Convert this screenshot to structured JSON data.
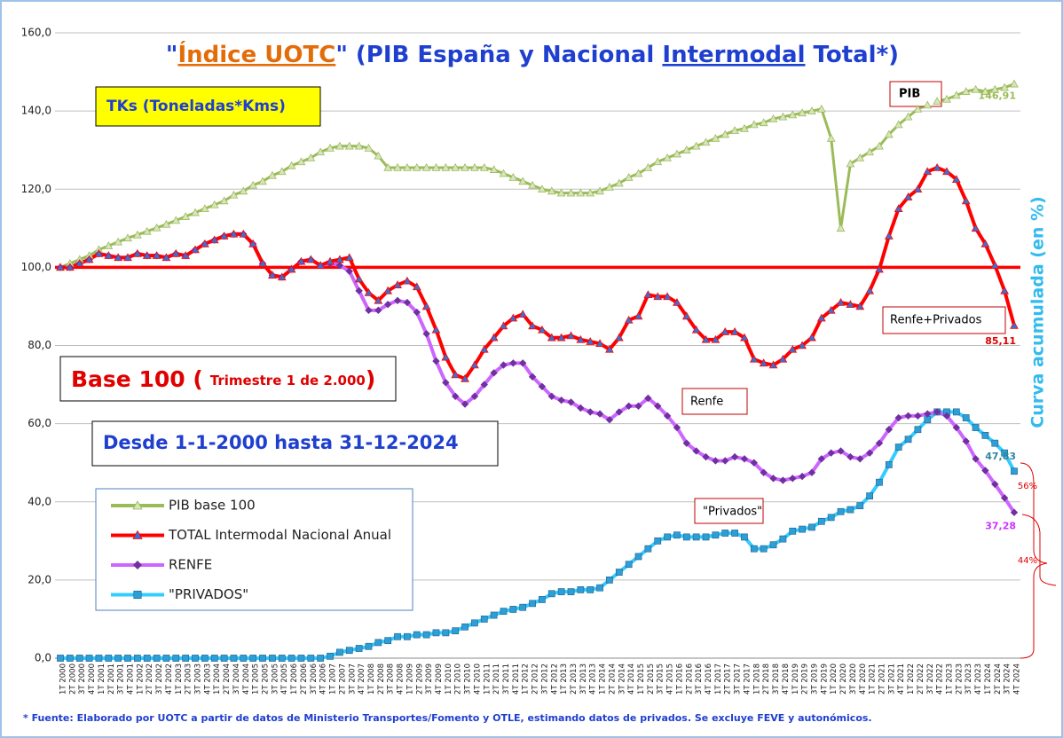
{
  "chart_data": {
    "type": "line",
    "title_parts": [
      "\"",
      "Índice UOTC",
      "\" (PIB España y Nacional ",
      "Intermodal",
      " Total*)"
    ],
    "unit_box": "TKs  (Toneladas*Kms)",
    "base_parts": [
      "Base 100 (",
      "Trimestre 1 de 2.000",
      ")"
    ],
    "period": "Desde 1-1-2000 hasta 31-12-2024",
    "y_axis_label": "Curva acumulada  (en %)",
    "footnote": "* Fuente:  Elaborado por UOTC a partir de datos de Ministerio Transportes/Fomento y OTLE, estimando datos de privados. Se excluye FEVE y autonómicos.",
    "callouts": [
      "PIB",
      "Renfe+Privados",
      "Renfe",
      "\"Privados\""
    ],
    "share_labels": [
      "56%",
      "44%"
    ],
    "reference_line": 100,
    "ylim": [
      0,
      160
    ],
    "yticks": [
      {
        "value": 0,
        "label": "0,0"
      },
      {
        "value": 20,
        "label": "20,0"
      },
      {
        "value": 40,
        "label": "40,0"
      },
      {
        "value": 60,
        "label": "60,0"
      },
      {
        "value": 80,
        "label": "80,0"
      },
      {
        "value": 100,
        "label": "100,0"
      },
      {
        "value": 120,
        "label": "120,0"
      },
      {
        "value": 140,
        "label": "140,0"
      },
      {
        "value": 160,
        "label": "160,0"
      }
    ],
    "grid": true,
    "legend": "lower-left",
    "categories": [
      "1T 2000",
      "2T 2000",
      "3T 2000",
      "4T 2000",
      "1T 2001",
      "2T 2001",
      "3T 2001",
      "4T 2001",
      "1T 2002",
      "2T 2002",
      "3T 2002",
      "4T 2002",
      "1T 2003",
      "2T 2003",
      "3T 2003",
      "4T 2003",
      "1T 2004",
      "2T 2004",
      "3T 2004",
      "4T 2004",
      "1T 2005",
      "2T 2005",
      "3T 2005",
      "4T 2005",
      "1T 2006",
      "2T 2006",
      "3T 2006",
      "4T 2006",
      "1T 2007",
      "2T 2007",
      "3T 2007",
      "4T 2007",
      "1T 2008",
      "2T 2008",
      "3T 2008",
      "4T 2008",
      "1T 2009",
      "2T 2009",
      "3T 2009",
      "4T 2009",
      "1T 2010",
      "2T 2010",
      "3T 2010",
      "4T 2010",
      "1T 2011",
      "2T 2011",
      "3T 2011",
      "4T 2011",
      "1T 2012",
      "2T 2012",
      "3T 2012",
      "4T 2012",
      "1T 2013",
      "2T 2013",
      "3T 2013",
      "4T 2013",
      "1T 2014",
      "2T 2014",
      "3T 2014",
      "4T 2014",
      "1T 2015",
      "2T 2015",
      "3T 2015",
      "4T 2015",
      "1T 2016",
      "2T 2016",
      "3T 2016",
      "4T 2016",
      "1T 2017",
      "2T 2017",
      "3T 2017",
      "4T 2017",
      "1T 2018",
      "2T 2018",
      "3T 2018",
      "4T 2018",
      "1T 2019",
      "2T 2019",
      "3T 2019",
      "4T 2019",
      "1T 2020",
      "2T 2020",
      "3T 2020",
      "4T 2020",
      "1T 2021",
      "2T 2021",
      "3T 2021",
      "4T 2021",
      "1T 2022",
      "2T 2022",
      "3T 2022",
      "4T 2022",
      "1T 2023",
      "2T 2023",
      "3T 2023",
      "4T 2023",
      "1T 2024",
      "2T 2024",
      "3T 2024",
      "4T 2024"
    ],
    "series": [
      {
        "name": "PIB base 100",
        "color": "#9bbb59",
        "marker": "triangle",
        "marker_color": "#d7e4bd",
        "last_label": "146,91",
        "values": [
          100,
          101,
          102,
          103,
          104.5,
          105.5,
          106.5,
          107.5,
          108.3,
          109.2,
          110.1,
          111,
          112,
          113,
          114,
          115,
          116,
          117,
          118.5,
          119.5,
          121,
          122,
          123.5,
          124.5,
          126,
          127,
          128,
          129.5,
          130.5,
          131,
          131,
          131,
          130.5,
          128.5,
          125.5,
          125.5,
          125.5,
          125.5,
          125.5,
          125.5,
          125.5,
          125.5,
          125.5,
          125.5,
          125.5,
          125,
          124,
          123,
          122,
          121,
          120,
          119.5,
          119,
          119,
          119,
          119,
          119.5,
          120.5,
          121.5,
          123,
          124,
          125.5,
          127,
          128,
          129,
          130,
          131,
          132,
          133,
          134,
          135,
          135.5,
          136.5,
          137,
          138,
          138.5,
          139,
          139.5,
          140,
          140.5,
          133,
          110,
          126.5,
          128,
          129.5,
          131,
          134,
          136.5,
          138.5,
          140.5,
          141.5,
          142.5,
          143,
          144,
          145,
          145.5,
          145,
          145.5,
          146,
          146.91
        ]
      },
      {
        "name": "TOTAL Intermodal Nacional Anual",
        "color": "#ff0000",
        "marker": "triangle",
        "marker_color": "#3d6fd1",
        "last_label": "85,11",
        "values": [
          100,
          100,
          101,
          102,
          103.5,
          103,
          102.5,
          102.5,
          103.5,
          103,
          103,
          102.5,
          103.5,
          103,
          104.5,
          106,
          107,
          108,
          108.5,
          108.5,
          106,
          101,
          98,
          97.5,
          99.5,
          101.5,
          102,
          100.5,
          101.5,
          102,
          102.5,
          97,
          93.5,
          91.5,
          94,
          95.5,
          96.5,
          95,
          90,
          84,
          77,
          72.5,
          71.5,
          75,
          79,
          82,
          85,
          87,
          88,
          85,
          84,
          82,
          82,
          82.5,
          81.5,
          81,
          80.5,
          79,
          82,
          86.5,
          87.5,
          93,
          92.5,
          92.5,
          91,
          87.5,
          84,
          81.5,
          81.5,
          83.5,
          83.5,
          82,
          76.5,
          75.5,
          75,
          76.5,
          79,
          80,
          82,
          87,
          89,
          91,
          90.5,
          90,
          94,
          99.5,
          108,
          115,
          118,
          120,
          124.5,
          125.5,
          124.5,
          122.5,
          117,
          110,
          106,
          100.5,
          94,
          85.11
        ]
      },
      {
        "name": "RENFE",
        "color": "#cc66ff",
        "marker": "diamond",
        "marker_color": "#7030a0",
        "last_label": "37,28",
        "values": [
          100,
          100,
          101,
          102,
          103.5,
          103,
          102.5,
          102.5,
          103.5,
          103,
          103,
          102.5,
          103.5,
          103,
          104.5,
          106,
          107,
          108,
          108.5,
          108.5,
          106,
          101,
          98,
          97.5,
          99.5,
          101.5,
          102,
          100.5,
          101,
          100.5,
          99,
          94,
          89,
          89,
          90.5,
          91.5,
          91,
          88.5,
          83,
          76,
          70.5,
          67,
          65,
          67,
          70,
          73,
          75,
          75.5,
          75.5,
          72,
          69.5,
          67,
          66,
          65.5,
          64,
          63,
          62.5,
          61,
          63,
          64.5,
          64.5,
          66.5,
          64.5,
          62,
          59,
          55,
          53,
          51.5,
          50.5,
          50.5,
          51.5,
          51,
          50,
          47.5,
          46,
          45.5,
          46,
          46.5,
          47.5,
          51,
          52.5,
          53,
          51.5,
          51,
          52.5,
          55,
          58.5,
          61.5,
          62,
          62,
          62.5,
          63,
          62,
          59,
          55.5,
          51,
          48,
          44.5,
          41,
          37.28
        ]
      },
      {
        "name": "\"PRIVADOS\"",
        "color": "#33ccff",
        "marker": "square",
        "marker_color": "#2e9fd6",
        "last_label": "47,83",
        "values": [
          0,
          0,
          0,
          0,
          0,
          0,
          0,
          0,
          0,
          0,
          0,
          0,
          0,
          0,
          0,
          0,
          0,
          0,
          0,
          0,
          0,
          0,
          0,
          0,
          0,
          0,
          0,
          0,
          0.5,
          1.5,
          2,
          2.5,
          3,
          4,
          4.5,
          5.5,
          5.5,
          6,
          6,
          6.5,
          6.5,
          7,
          8,
          9,
          10,
          11,
          12,
          12.5,
          13,
          14,
          15,
          16.5,
          17,
          17,
          17.5,
          17.5,
          18,
          20,
          22,
          24,
          26,
          28,
          30,
          31,
          31.5,
          31,
          31,
          31,
          31.5,
          32,
          32,
          31,
          28,
          28,
          29,
          30.5,
          32.5,
          33,
          33.5,
          35,
          36,
          37.5,
          38,
          39,
          41.5,
          45,
          49.5,
          54,
          56,
          58.5,
          61,
          63,
          63,
          63,
          61.5,
          59,
          57,
          55,
          52.5,
          47.83
        ]
      }
    ]
  }
}
